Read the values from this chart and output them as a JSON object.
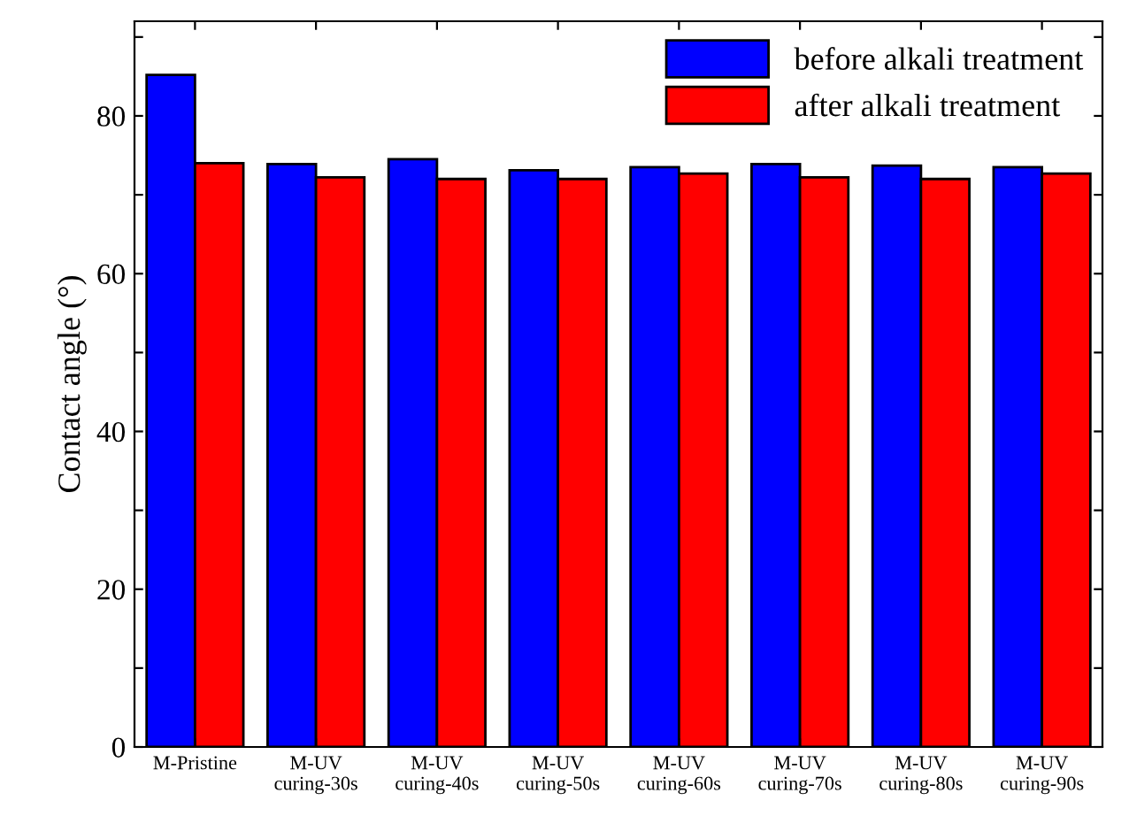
{
  "chart_data": {
    "type": "bar",
    "ylabel": "Contact angle (°)",
    "categories": [
      "M-Pristine",
      "M-UV\ncuring-30s",
      "M-UV\ncuring-40s",
      "M-UV\ncuring-50s",
      "M-UV\ncuring-60s",
      "M-UV\ncuring-70s",
      "M-UV\ncuring-80s",
      "M-UV\ncuring-90s"
    ],
    "series": [
      {
        "name": "before alkali treatment",
        "color": "#0000ff",
        "values": [
          85.2,
          73.9,
          74.5,
          73.1,
          73.5,
          73.9,
          73.7,
          73.5
        ]
      },
      {
        "name": "after alkali treatment",
        "color": "#ff0000",
        "values": [
          74.0,
          72.2,
          72.0,
          72.0,
          72.7,
          72.2,
          72.0,
          72.7
        ]
      }
    ],
    "ylim": [
      0,
      92
    ],
    "yticks": [
      0,
      {
        "value": 10,
        "label": null
      },
      20,
      {
        "value": 30,
        "label": null
      },
      40,
      {
        "value": 50,
        "label": null
      },
      60,
      {
        "value": 70,
        "label": null
      },
      80,
      {
        "value": 90,
        "label": null
      }
    ],
    "legend": "top right",
    "grid": false
  }
}
